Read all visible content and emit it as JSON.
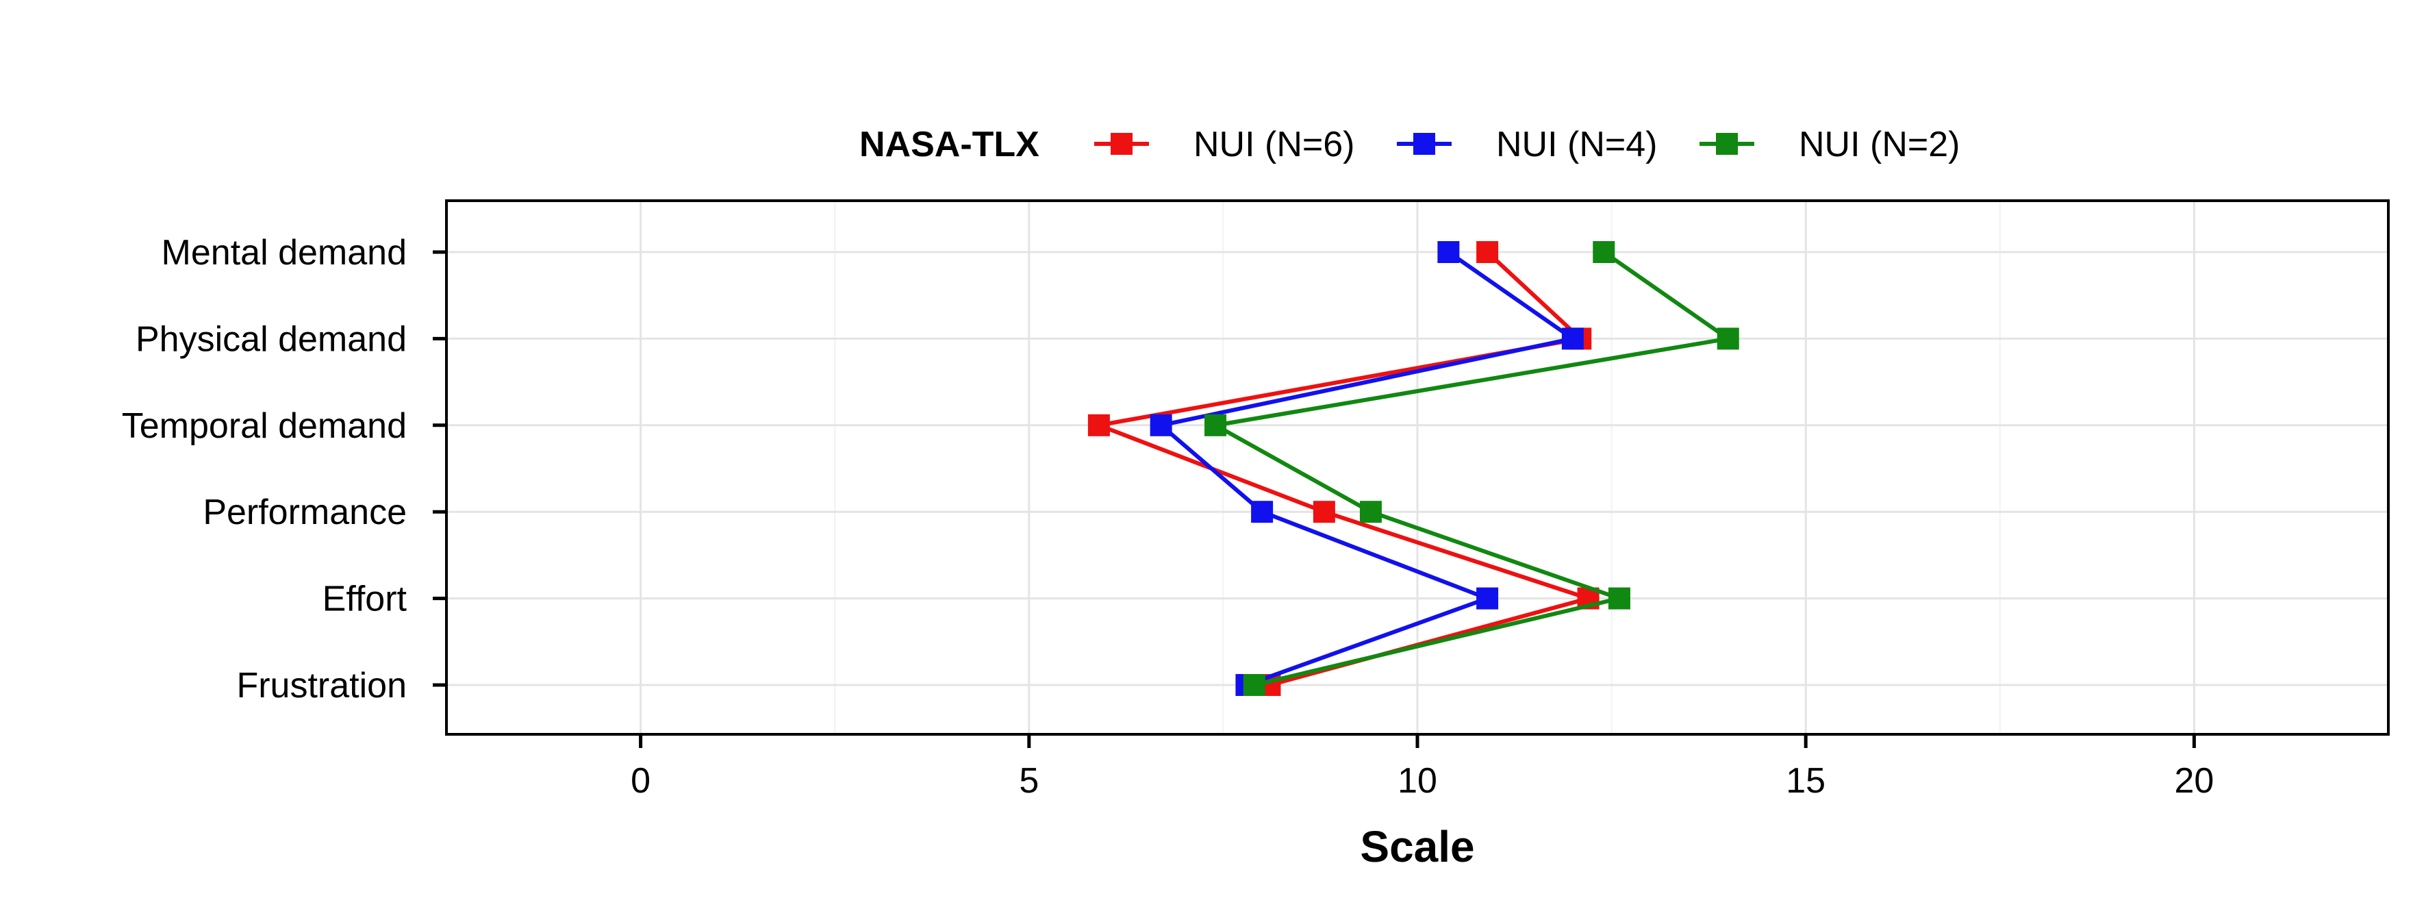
{
  "chart_data": {
    "type": "line",
    "orientation": "horizontal",
    "xlabel": "Scale",
    "ylabel": "",
    "xlim": [
      -2.5,
      22.5
    ],
    "xticks": [
      0,
      5,
      10,
      15,
      20
    ],
    "categories": [
      "Mental demand",
      "Physical demand",
      "Temporal demand",
      "Performance",
      "Effort",
      "Frustration"
    ],
    "legend": {
      "title": "NASA-TLX",
      "position": "top"
    },
    "grid": true,
    "series": [
      {
        "name": "NUI (N=6)",
        "color": "#ee1111",
        "values": [
          10.9,
          12.1,
          5.9,
          8.8,
          12.2,
          8.1
        ]
      },
      {
        "name": "NUI (N=4)",
        "color": "#1111ee",
        "values": [
          10.4,
          12.0,
          6.7,
          8.0,
          10.9,
          7.8
        ]
      },
      {
        "name": "NUI (N=2)",
        "color": "#118811",
        "values": [
          12.4,
          14.0,
          7.4,
          9.4,
          12.6,
          7.9
        ]
      }
    ]
  }
}
